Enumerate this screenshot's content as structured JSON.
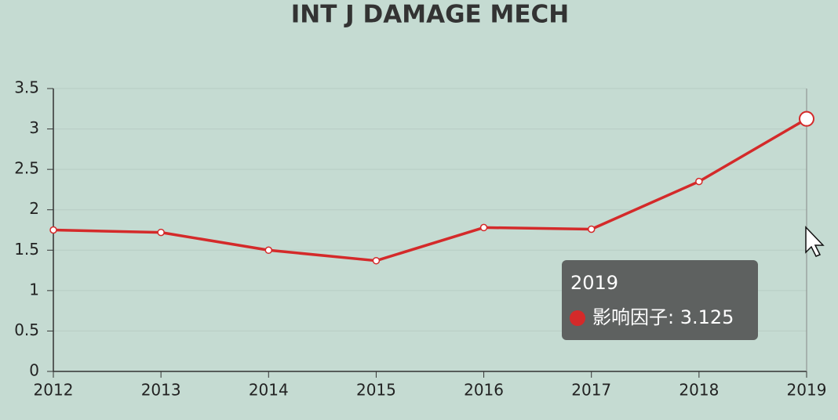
{
  "chart_data": {
    "type": "line",
    "title": "INT J DAMAGE MECH",
    "categories": [
      "2012",
      "2013",
      "2014",
      "2015",
      "2016",
      "2017",
      "2018",
      "2019"
    ],
    "values": [
      1.75,
      1.72,
      1.5,
      1.37,
      1.78,
      1.76,
      2.35,
      3.125
    ],
    "color": "#d42a2a",
    "ylim": [
      0,
      3.5
    ],
    "yticks": [
      0,
      0.5,
      1,
      1.5,
      2,
      2.5,
      3,
      3.5
    ],
    "grid": true,
    "tooltip": {
      "label": "影响因子: 3.125"
    }
  }
}
